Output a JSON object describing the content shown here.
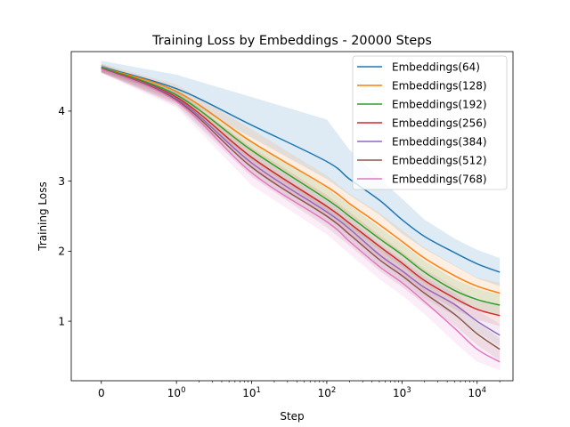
{
  "chart_data": {
    "type": "line",
    "title": "Training Loss by Embeddings - 20000 Steps",
    "xlabel": "Step",
    "ylabel": "Training Loss",
    "xscale": "symlog",
    "xlim": [
      -0.4,
      30000
    ],
    "ylim": [
      0.15,
      4.85
    ],
    "xticks": [
      {
        "value": 0,
        "base": "0",
        "exp": ""
      },
      {
        "value": 1,
        "base": "10",
        "exp": "0"
      },
      {
        "value": 10,
        "base": "10",
        "exp": "1"
      },
      {
        "value": 100,
        "base": "10",
        "exp": "2"
      },
      {
        "value": 1000,
        "base": "10",
        "exp": "3"
      },
      {
        "value": 10000,
        "base": "10",
        "exp": "4"
      }
    ],
    "yticks": [
      1,
      2,
      3,
      4
    ],
    "grid": false,
    "legend_position": "top-right",
    "x": [
      0,
      1,
      10,
      100,
      200,
      500,
      1000,
      2000,
      5000,
      10000,
      20000
    ],
    "series": [
      {
        "name": "Embeddings(64)",
        "color": "#1f77b4",
        "values": [
          4.63,
          4.32,
          3.8,
          3.28,
          3.03,
          2.73,
          2.45,
          2.21,
          1.98,
          1.82,
          1.7
        ],
        "band_upper": [
          4.72,
          4.52,
          4.2,
          3.88,
          3.45,
          3.05,
          2.75,
          2.45,
          2.18,
          2.02,
          1.9
        ],
        "band_lower": [
          4.56,
          4.22,
          3.62,
          3.03,
          2.8,
          2.52,
          2.25,
          2.03,
          1.79,
          1.61,
          1.5
        ]
      },
      {
        "name": "Embeddings(128)",
        "color": "#ff7f0e",
        "values": [
          4.62,
          4.28,
          3.56,
          2.92,
          2.68,
          2.38,
          2.14,
          1.9,
          1.65,
          1.5,
          1.4
        ],
        "band_upper": [
          4.68,
          4.38,
          3.74,
          3.08,
          2.82,
          2.55,
          2.3,
          2.05,
          1.8,
          1.62,
          1.55
        ],
        "band_lower": [
          4.55,
          4.2,
          3.4,
          2.76,
          2.52,
          2.2,
          1.96,
          1.72,
          1.48,
          1.33,
          1.24
        ]
      },
      {
        "name": "Embeddings(192)",
        "color": "#2ca02c",
        "values": [
          4.62,
          4.23,
          3.44,
          2.74,
          2.5,
          2.18,
          1.95,
          1.7,
          1.44,
          1.31,
          1.23
        ],
        "band_upper": [
          4.67,
          4.32,
          3.58,
          2.9,
          2.66,
          2.34,
          2.11,
          1.86,
          1.6,
          1.46,
          1.38
        ],
        "band_lower": [
          4.56,
          4.15,
          3.3,
          2.58,
          2.34,
          2.02,
          1.78,
          1.54,
          1.28,
          1.16,
          1.08
        ]
      },
      {
        "name": "Embeddings(256)",
        "color": "#d62728",
        "values": [
          4.61,
          4.2,
          3.34,
          2.64,
          2.4,
          2.07,
          1.83,
          1.58,
          1.33,
          1.17,
          1.08
        ],
        "band_upper": [
          4.66,
          4.29,
          3.48,
          2.8,
          2.56,
          2.23,
          1.99,
          1.74,
          1.49,
          1.32,
          1.23
        ],
        "band_lower": [
          4.55,
          4.12,
          3.2,
          2.48,
          2.24,
          1.91,
          1.66,
          1.42,
          1.17,
          1.02,
          0.93
        ]
      },
      {
        "name": "Embeddings(384)",
        "color": "#9467bd",
        "values": [
          4.61,
          4.18,
          3.26,
          2.56,
          2.32,
          1.95,
          1.72,
          1.48,
          1.24,
          1.0,
          0.8
        ],
        "band_upper": [
          4.66,
          4.27,
          3.4,
          2.72,
          2.48,
          2.11,
          1.88,
          1.64,
          1.4,
          1.16,
          0.96
        ],
        "band_lower": [
          4.55,
          4.1,
          3.12,
          2.4,
          2.16,
          1.79,
          1.56,
          1.32,
          1.08,
          0.84,
          0.64
        ]
      },
      {
        "name": "Embeddings(512)",
        "color": "#8c564b",
        "values": [
          4.61,
          4.16,
          3.2,
          2.5,
          2.24,
          1.88,
          1.65,
          1.4,
          1.1,
          0.82,
          0.6
        ],
        "band_upper": [
          4.66,
          4.25,
          3.34,
          2.66,
          2.4,
          2.04,
          1.81,
          1.56,
          1.26,
          0.98,
          0.76
        ],
        "band_lower": [
          4.55,
          4.08,
          3.06,
          2.34,
          2.08,
          1.72,
          1.49,
          1.24,
          0.94,
          0.66,
          0.44
        ]
      },
      {
        "name": "Embeddings(768)",
        "color": "#e377c2",
        "values": [
          4.6,
          4.14,
          3.12,
          2.42,
          2.14,
          1.78,
          1.55,
          1.28,
          0.9,
          0.6,
          0.42
        ],
        "band_upper": [
          4.66,
          4.23,
          3.3,
          2.6,
          2.32,
          1.96,
          1.73,
          1.46,
          1.1,
          0.78,
          0.6
        ],
        "band_lower": [
          4.54,
          4.05,
          2.94,
          2.24,
          1.96,
          1.6,
          1.37,
          1.1,
          0.7,
          0.42,
          0.3
        ]
      }
    ]
  }
}
